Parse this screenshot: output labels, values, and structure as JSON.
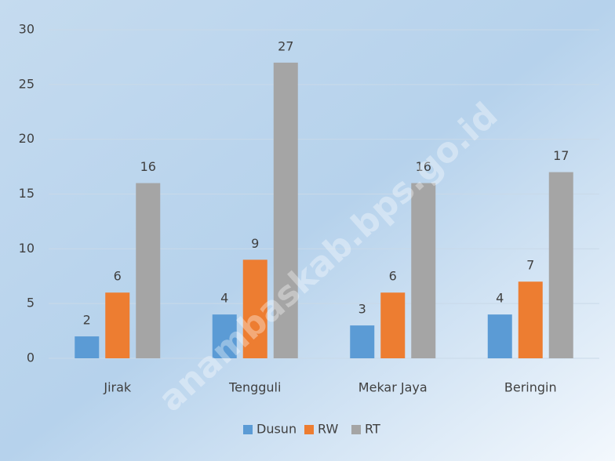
{
  "chart_data": {
    "type": "bar",
    "categories": [
      "Jirak",
      "Tengguli",
      "Mekar Jaya",
      "Beringin"
    ],
    "series": [
      {
        "name": "Dusun",
        "color": "#5b9bd5",
        "values": [
          2,
          4,
          3,
          4
        ]
      },
      {
        "name": "RW",
        "color": "#ed7d31",
        "values": [
          6,
          9,
          6,
          7
        ]
      },
      {
        "name": "RT",
        "color": "#a5a5a5",
        "values": [
          16,
          27,
          16,
          17
        ]
      }
    ],
    "ylim": [
      0,
      30
    ],
    "yticks": [
      0,
      5,
      10,
      15,
      20,
      25,
      30
    ],
    "grid": true,
    "legend": "bottom",
    "watermark": "anambaskab.bps.go.id"
  }
}
